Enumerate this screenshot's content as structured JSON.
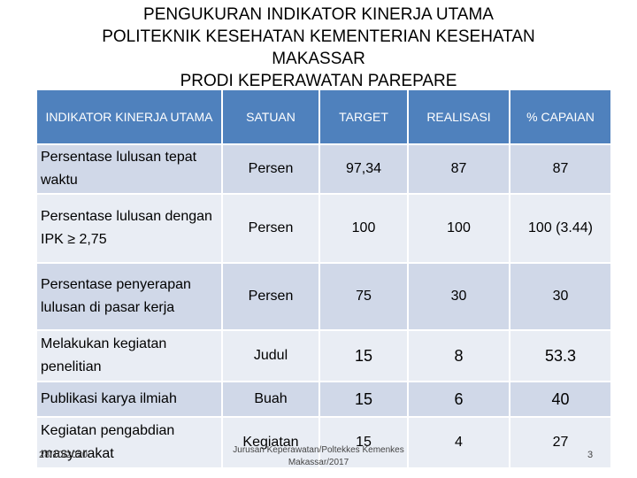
{
  "title": {
    "line1": "PENGUKURAN INDIKATOR KINERJA UTAMA",
    "line2": "POLITEKNIK KESEHATAN KEMENTERIAN KESEHATAN",
    "line3": "MAKASSAR",
    "line4": "PRODI KEPERAWATAN PAREPARE"
  },
  "table": {
    "headers": [
      "INDIKATOR KINERJA UTAMA",
      "SATUAN",
      "TARGET",
      "REALISASI",
      "% CAPAIAN"
    ],
    "rows": [
      [
        "Persentase lulusan tepat waktu",
        "Persen",
        "97,34",
        "87",
        "87"
      ],
      [
        "Persentase lulusan dengan IPK ≥ 2,75",
        "Persen",
        "100",
        "100",
        "100 (3.44)"
      ],
      [
        "Persentase penyerapan lulusan di pasar kerja",
        "Persen",
        "75",
        "30",
        "30"
      ],
      [
        "Melakukan kegiatan penelitian",
        "Judul",
        "15",
        "8",
        "53.3"
      ],
      [
        "Publikasi karya ilmiah",
        "Buah",
        "15",
        "6",
        "40"
      ],
      [
        "Kegiatan pengabdian masyarakat",
        "Kegiatan",
        "15",
        "4",
        "27"
      ]
    ]
  },
  "footer": {
    "date": "28/10/2020",
    "source_line1": "Jurusan Keperawatan/Poltekkes Kemenkes",
    "source_line2": "Makassar/2017",
    "page": "3"
  },
  "colors": {
    "header_bg": "#4f81bd",
    "row_dark": "#d0d8e8",
    "row_light": "#e9edf4"
  }
}
